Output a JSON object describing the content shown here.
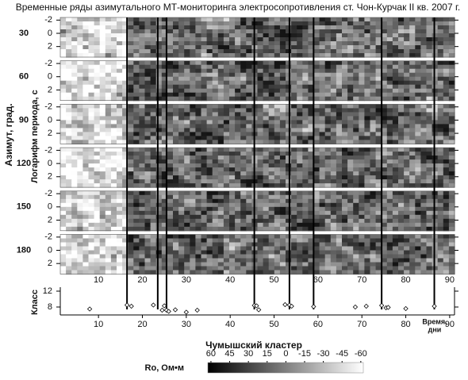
{
  "chart_data": [
    {
      "type": "heatmap",
      "title": "Временные ряды азимутального МТ-мониторинга электросопротивления ст. Чон-Курчак II кв. 2007 г.",
      "panel_axis_label": "Азимут, град.",
      "y_label": "Логарифм периода, с",
      "panels": [
        30,
        60,
        90,
        120,
        150,
        180
      ],
      "xlim": [
        1.3,
        91.1
      ],
      "xticks": [
        10,
        20,
        30,
        40,
        50,
        60,
        70,
        80,
        90
      ],
      "ylim": [
        -2.4,
        3.6
      ],
      "y_inverted": true,
      "yticks": [
        -2,
        0,
        2
      ],
      "event_lines": [
        16.5,
        23.5,
        25.5,
        45.5,
        53.5,
        59,
        74.5,
        86.5
      ],
      "line_color": "#000000",
      "colorbar": {
        "label": "Ro, Ом•м",
        "lim": [
          62.5,
          -62
        ],
        "ticks": [
          60,
          45,
          30,
          15,
          0,
          -15,
          -30,
          -45,
          -60
        ],
        "colors": [
          "#000000",
          "#ffffff"
        ]
      }
    },
    {
      "type": "scatter",
      "title": "Чумышский кластер",
      "y_label": "Класс",
      "x_label": [
        "Время,",
        "дни"
      ],
      "x": [
        8,
        16.5,
        17.5,
        22.5,
        24.5,
        25,
        25.5,
        26,
        27.5,
        30,
        32.5,
        45.5,
        46,
        46.5,
        52.5,
        53.5,
        54,
        59,
        68.5,
        71,
        74.5,
        75.5,
        76,
        80,
        86.5
      ],
      "values": [
        7.5,
        8.5,
        8.2,
        8.5,
        7.2,
        8.3,
        7.2,
        6.9,
        7.3,
        6.7,
        7.2,
        8.4,
        8.3,
        7.3,
        8.6,
        8.5,
        8.2,
        8.1,
        8.0,
        8.2,
        8.4,
        7.8,
        7.9,
        7.6,
        8.2
      ],
      "xlim": [
        1.3,
        91.1
      ],
      "xticks": [
        10,
        20,
        30,
        40,
        50,
        60,
        70,
        80,
        90
      ],
      "ylim": [
        6,
        13
      ],
      "yticks": [
        8,
        12
      ],
      "marker": "diamond",
      "color": "#000000"
    }
  ]
}
